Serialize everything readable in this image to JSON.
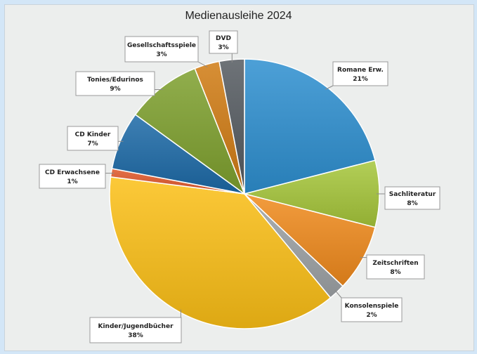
{
  "chart_data": {
    "type": "pie",
    "title": "Medienausleihe 2024",
    "slices": [
      {
        "label": "Romane Erw.",
        "display": "21%",
        "value": 21,
        "color": "#2e8fd0"
      },
      {
        "label": "Sachliteratur",
        "display": "8%",
        "value": 8,
        "color": "#a6c63a"
      },
      {
        "label": "Zeitschriften",
        "display": "8%",
        "value": 8,
        "color": "#f08a1c"
      },
      {
        "label": "Konsolenspiele",
        "display": "2%",
        "value": 2,
        "color": "#9ea3a6"
      },
      {
        "label": "Kinder/Jugendbücher",
        "display": "38%",
        "value": 38,
        "color": "#fbbf16"
      },
      {
        "label": "CD Erwachsene",
        "display": "1%",
        "value": 1,
        "color": "#e0582a"
      },
      {
        "label": "CD Kinder",
        "display": "7%",
        "value": 7,
        "color": "#1c6aa7"
      },
      {
        "label": "Tonies/Edurinos",
        "display": "9%",
        "value": 9,
        "color": "#7ea02d"
      },
      {
        "label": "Gesellschaftsspiele",
        "display": "3%",
        "value": 3,
        "color": "#d07b13"
      },
      {
        "label": "DVD",
        "display": "3%",
        "value": 3,
        "color": "#545a60"
      }
    ]
  }
}
